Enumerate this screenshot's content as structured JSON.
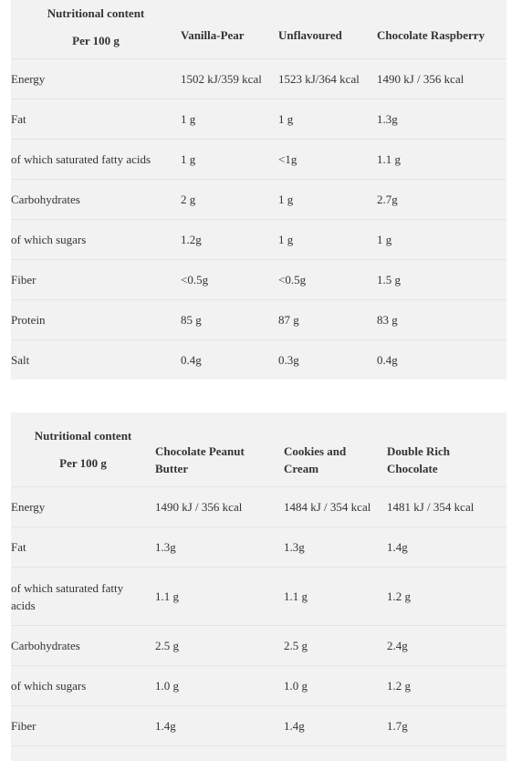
{
  "table1": {
    "title": "Nutritional content",
    "per": "Per 100 g",
    "columns": [
      "Vanilla-Pear",
      "Unflavoured",
      "Chocolate Raspberry"
    ],
    "rows": [
      {
        "label": "Energy",
        "values": [
          "1502 kJ/359 kcal",
          "1523 kJ/364 kcal",
          "1490 kJ / 356 kcal"
        ]
      },
      {
        "label": "Fat",
        "values": [
          "1 g",
          "1 g",
          "1.3g"
        ]
      },
      {
        "label": "of which saturated fatty acids",
        "values": [
          "1 g",
          "<1g",
          "1.1 g"
        ]
      },
      {
        "label": "Carbohydrates",
        "values": [
          "2 g",
          "1 g",
          "2.7g"
        ]
      },
      {
        "label": "of which sugars",
        "values": [
          "1.2g",
          "1 g",
          "1 g"
        ]
      },
      {
        "label": "Fiber",
        "values": [
          "<0.5g",
          "<0.5g",
          "1.5 g"
        ]
      },
      {
        "label": "Protein",
        "values": [
          "85 g",
          "87 g",
          "83 g"
        ]
      },
      {
        "label": "Salt",
        "values": [
          "0.4g",
          "0.3g",
          "0.4g"
        ]
      }
    ]
  },
  "table2": {
    "title": "Nutritional content",
    "per": "Per 100 g",
    "columns": [
      [
        "Chocolate Peanut",
        "Butter"
      ],
      [
        "Cookies and",
        "Cream"
      ],
      [
        "Double Rich",
        "Chocolate"
      ]
    ],
    "rows": [
      {
        "label": [
          "Energy"
        ],
        "values": [
          "1490 kJ / 356 kcal",
          "1484 kJ / 354 kcal",
          "1481 kJ / 354 kcal"
        ]
      },
      {
        "label": [
          "Fat"
        ],
        "values": [
          "1.3g",
          "1.3g",
          "1.4g"
        ]
      },
      {
        "label": [
          "of which saturated fatty",
          "acids"
        ],
        "values": [
          "1.1 g",
          "1.1 g",
          "1.2 g"
        ]
      },
      {
        "label": [
          "Carbohydrates"
        ],
        "values": [
          "2.5 g",
          "2.5 g",
          "2.4g"
        ]
      },
      {
        "label": [
          "of which sugars"
        ],
        "values": [
          "1.0 g",
          "1.0 g",
          "1.2 g"
        ]
      },
      {
        "label": [
          "Fiber"
        ],
        "values": [
          "1.4g",
          "1.4g",
          "1.7g"
        ]
      }
    ]
  }
}
